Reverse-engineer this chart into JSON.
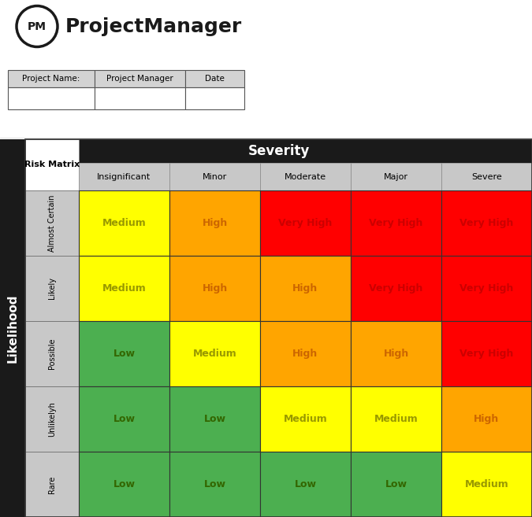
{
  "title": "ProjectManager",
  "severity_label": "Severity",
  "likelihood_label": "Likelihood",
  "risk_matrix_label": "Risk Matrix",
  "severity_cols": [
    "Insignificant",
    "Minor",
    "Moderate",
    "Major",
    "Severe"
  ],
  "likelihood_rows": [
    "Almost Certain",
    "Likely",
    "Possible",
    "Unlikelyh",
    "Rare"
  ],
  "matrix_labels": [
    [
      "Medium",
      "High",
      "Very High",
      "Very High",
      "Very High"
    ],
    [
      "Medium",
      "High",
      "High",
      "Very High",
      "Very High"
    ],
    [
      "Low",
      "Medium",
      "High",
      "High",
      "Very High"
    ],
    [
      "Low",
      "Low",
      "Medium",
      "Medium",
      "High"
    ],
    [
      "Low",
      "Low",
      "Low",
      "Low",
      "Medium"
    ]
  ],
  "cell_colors": [
    [
      "#FFFF00",
      "#FFA500",
      "#FF0000",
      "#FF0000",
      "#FF0000"
    ],
    [
      "#FFFF00",
      "#FFA500",
      "#FFA500",
      "#FF0000",
      "#FF0000"
    ],
    [
      "#4CAF50",
      "#FFFF00",
      "#FFA500",
      "#FFA500",
      "#FF0000"
    ],
    [
      "#4CAF50",
      "#4CAF50",
      "#FFFF00",
      "#FFFF00",
      "#FFA500"
    ],
    [
      "#4CAF50",
      "#4CAF50",
      "#4CAF50",
      "#4CAF50",
      "#FFFF00"
    ]
  ],
  "label_colors": {
    "Very High": "#CC0000",
    "High": "#CC6600",
    "Medium": "#999900",
    "Low": "#336600"
  },
  "header_bg": "#1a1a1a",
  "left_black_bg": "#1a1a1a",
  "col_header_bg": "#C8C8C8",
  "row_header_bg": "#C8C8C8",
  "project_name_label": "Project Name:",
  "project_manager_label": "Project Manager",
  "date_label": "Date",
  "fig_width": 6.75,
  "fig_height": 6.57,
  "dpi": 100
}
